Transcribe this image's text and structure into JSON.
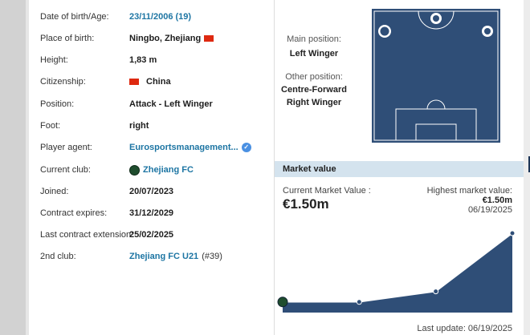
{
  "profile": [
    {
      "label": "Date of birth/Age:",
      "value": "23/11/2006 (19)",
      "type": "link"
    },
    {
      "label": "Place of birth:",
      "value": "Ningbo, Zhejiang",
      "type": "flag-after"
    },
    {
      "label": "Height:",
      "value": "1,83 m"
    },
    {
      "label": "Citizenship:",
      "value": "China",
      "type": "flag-before"
    },
    {
      "label": "Position:",
      "value": "Attack - Left Winger"
    },
    {
      "label": "Foot:",
      "value": "right"
    },
    {
      "label": "Player agent:",
      "value": "Eurosportsmanagement...",
      "type": "agent"
    },
    {
      "label": "Current club:",
      "value": "Zhejiang FC",
      "type": "club"
    },
    {
      "label": "Joined:",
      "value": "20/07/2023"
    },
    {
      "label": "Contract expires:",
      "value": "31/12/2029"
    },
    {
      "label": "Last contract extension:",
      "value": "25/02/2025"
    },
    {
      "label": "2nd club:",
      "value": "Zhejiang FC U21",
      "suffix": "(#39)",
      "type": "link-suffix"
    }
  ],
  "positions": {
    "main_label": "Main position:",
    "main": "Left Winger",
    "other_label": "Other position:",
    "other": [
      "Centre-Forward",
      "Right Winger"
    ]
  },
  "market": {
    "title": "Market value",
    "current_label": "Current Market Value :",
    "current": "€1.50m",
    "highest_label": "Highest market value:",
    "highest": "€1.50m",
    "highest_date": "06/19/2025",
    "last_update": "Last update: 06/19/2025"
  },
  "colors": {
    "accent": "#1d75a3",
    "pitch": "#2f4e77",
    "header": "#d4e3ee"
  },
  "chart_data": {
    "type": "area",
    "values": [
      0.2,
      0.2,
      0.4,
      1.5
    ],
    "ylabel": "",
    "xlabel": ""
  }
}
